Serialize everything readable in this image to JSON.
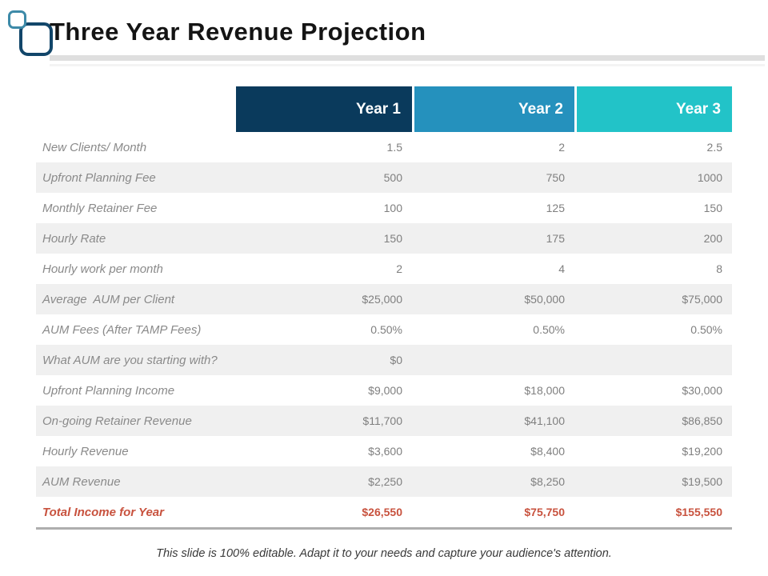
{
  "slide": {
    "title": "Three Year Revenue Projection",
    "footer_note": "This slide is 100% editable. Adapt it to your needs and capture your audience's attention."
  },
  "icon": {
    "name": "overlapping-rounded-squares",
    "small_square_color": "#3d8aa8",
    "large_square_color": "#12466a"
  },
  "table": {
    "columns": [
      "Year 1",
      "Year 2",
      "Year 3"
    ],
    "header_colors": [
      "#0a3a5c",
      "#2591bd",
      "#22c3c8"
    ],
    "stripe_color": "#f0f0f0",
    "total_color": "#c8523e",
    "rows": [
      {
        "label": "New Clients/ Month",
        "values": [
          "1.5",
          "2",
          "2.5"
        ]
      },
      {
        "label": "Upfront Planning Fee",
        "values": [
          "500",
          "750",
          "1000"
        ]
      },
      {
        "label": "Monthly Retainer Fee",
        "values": [
          "100",
          "125",
          "150"
        ]
      },
      {
        "label": "Hourly Rate",
        "values": [
          "150",
          "175",
          "200"
        ]
      },
      {
        "label": "Hourly work per month",
        "values": [
          "2",
          "4",
          "8"
        ]
      },
      {
        "label": "Average  AUM per Client",
        "values": [
          "$25,000",
          "$50,000",
          "$75,000"
        ]
      },
      {
        "label": "AUM Fees (After TAMP Fees)",
        "values": [
          "0.50%",
          "0.50%",
          "0.50%"
        ]
      },
      {
        "label": "What AUM are you starting with?",
        "values": [
          "$0",
          "",
          ""
        ]
      },
      {
        "label": "Upfront Planning Income",
        "values": [
          "$9,000",
          "$18,000",
          "$30,000"
        ]
      },
      {
        "label": "On-going Retainer Revenue",
        "values": [
          "$11,700",
          "$41,100",
          "$86,850"
        ]
      },
      {
        "label": "Hourly Revenue",
        "values": [
          "$3,600",
          "$8,400",
          "$19,200"
        ]
      },
      {
        "label": "AUM Revenue",
        "values": [
          "$2,250",
          "$8,250",
          "$19,500"
        ]
      },
      {
        "label": "Total Income for Year",
        "values": [
          "$26,550",
          "$75,750",
          "$155,550"
        ],
        "is_total": true
      }
    ]
  }
}
